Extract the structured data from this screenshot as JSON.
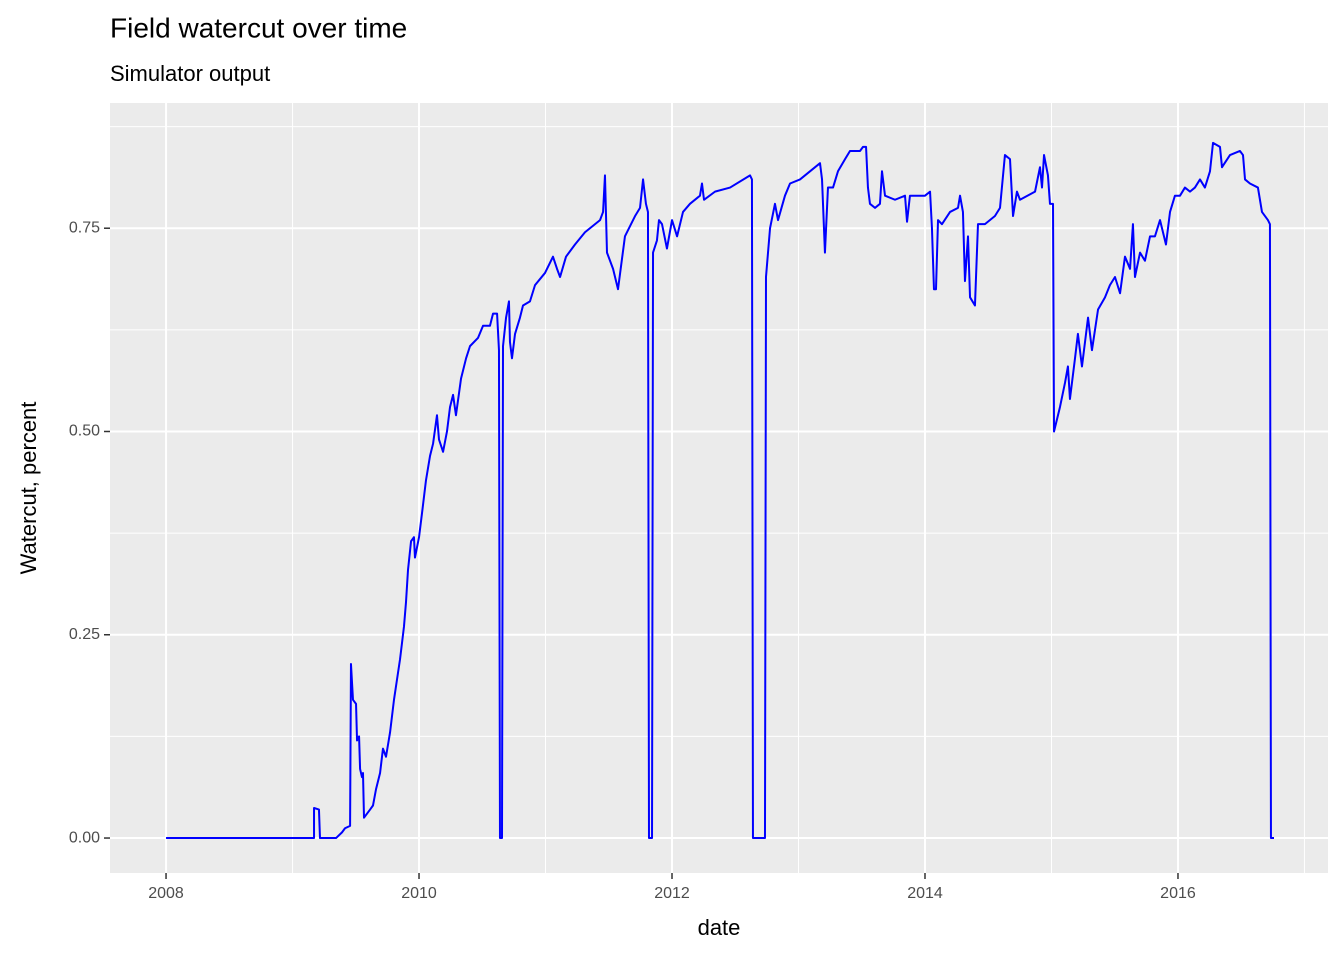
{
  "chart_data": {
    "type": "line",
    "title": "Field watercut over time",
    "subtitle": "Simulator output",
    "x_label": "date",
    "y_label": "Watercut, percent",
    "color": "#0000ff",
    "grid": true,
    "minor_grid": true,
    "xlim": [
      2007.557,
      2017.186
    ],
    "ylim": [
      -0.043,
      0.904
    ],
    "xticks": [
      2008,
      2010,
      2012,
      2014,
      2016
    ],
    "yticks": [
      {
        "value": 0,
        "label": "0.00"
      },
      0.25,
      {
        "value": 0.5,
        "label": "0.50"
      },
      0.75
    ],
    "x": [
      2008.0,
      2009.17,
      2009.17,
      2009.209,
      2009.217,
      2009.344,
      2009.391,
      2009.415,
      2009.455,
      2009.462,
      2009.478,
      2009.502,
      2009.51,
      2009.526,
      2009.534,
      2009.549,
      2009.557,
      2009.565,
      2009.613,
      2009.636,
      2009.66,
      2009.692,
      2009.715,
      2009.739,
      2009.771,
      2009.802,
      2009.826,
      2009.85,
      2009.881,
      2009.897,
      2009.913,
      2009.937,
      2009.96,
      2009.968,
      2010.0,
      2010.024,
      2010.055,
      2010.087,
      2010.111,
      2010.142,
      2010.158,
      2010.19,
      2010.221,
      2010.245,
      2010.269,
      2010.292,
      2010.332,
      2010.372,
      2010.403,
      2010.466,
      2010.506,
      2010.561,
      2010.585,
      2010.617,
      2010.632,
      2010.64,
      2010.656,
      2010.664,
      2010.688,
      2010.711,
      2010.719,
      2010.735,
      2010.759,
      2010.798,
      2010.822,
      2010.877,
      2010.917,
      2010.996,
      2011.059,
      2011.091,
      2011.115,
      2011.162,
      2011.233,
      2011.312,
      2011.431,
      2011.455,
      2011.47,
      2011.486,
      2011.534,
      2011.573,
      2011.628,
      2011.708,
      2011.747,
      2011.771,
      2011.794,
      2011.81,
      2011.818,
      2011.842,
      2011.85,
      2011.881,
      2011.897,
      2011.921,
      2011.96,
      2012.0,
      2012.04,
      2012.087,
      2012.142,
      2012.221,
      2012.237,
      2012.253,
      2012.34,
      2012.459,
      2012.617,
      2012.632,
      2012.64,
      2012.735,
      2012.743,
      2012.775,
      2012.814,
      2012.838,
      2012.893,
      2012.933,
      2013.012,
      2013.091,
      2013.17,
      2013.186,
      2013.209,
      2013.233,
      2013.273,
      2013.312,
      2013.368,
      2013.407,
      2013.486,
      2013.51,
      2013.534,
      2013.549,
      2013.565,
      2013.605,
      2013.644,
      2013.66,
      2013.684,
      2013.763,
      2013.842,
      2013.858,
      2013.881,
      2014.0,
      2014.04,
      2014.055,
      2014.071,
      2014.087,
      2014.103,
      2014.134,
      2014.198,
      2014.261,
      2014.277,
      2014.3,
      2014.316,
      2014.34,
      2014.356,
      2014.395,
      2014.419,
      2014.474,
      2014.553,
      2014.593,
      2014.632,
      2014.672,
      2014.696,
      2014.727,
      2014.751,
      2014.87,
      2014.909,
      2014.925,
      2014.941,
      2014.972,
      2014.988,
      2015.012,
      2015.02,
      2015.067,
      2015.107,
      2015.13,
      2015.146,
      2015.186,
      2015.209,
      2015.241,
      2015.289,
      2015.32,
      2015.368,
      2015.423,
      2015.462,
      2015.502,
      2015.542,
      2015.581,
      2015.621,
      2015.644,
      2015.66,
      2015.7,
      2015.739,
      2015.779,
      2015.818,
      2015.858,
      2015.905,
      2015.937,
      2015.976,
      2016.016,
      2016.055,
      2016.095,
      2016.134,
      2016.174,
      2016.213,
      2016.253,
      2016.277,
      2016.332,
      2016.348,
      2016.411,
      2016.49,
      2016.514,
      2016.53,
      2016.569,
      2016.632,
      2016.664,
      2016.711,
      2016.727,
      2016.735,
      2016.759
    ],
    "values": [
      0,
      0,
      0.037,
      0.035,
      0,
      0,
      0.007,
      0.012,
      0.015,
      0.214,
      0.17,
      0.165,
      0.12,
      0.125,
      0.085,
      0.075,
      0.08,
      0.025,
      0.035,
      0.04,
      0.06,
      0.08,
      0.11,
      0.1,
      0.13,
      0.17,
      0.195,
      0.22,
      0.26,
      0.29,
      0.33,
      0.365,
      0.37,
      0.345,
      0.37,
      0.4,
      0.44,
      0.47,
      0.485,
      0.52,
      0.49,
      0.475,
      0.5,
      0.53,
      0.545,
      0.52,
      0.565,
      0.59,
      0.605,
      0.615,
      0.63,
      0.63,
      0.645,
      0.645,
      0.6,
      0,
      0,
      0.605,
      0.64,
      0.66,
      0.61,
      0.59,
      0.62,
      0.64,
      0.655,
      0.66,
      0.68,
      0.695,
      0.715,
      0.7,
      0.69,
      0.715,
      0.73,
      0.745,
      0.76,
      0.77,
      0.815,
      0.72,
      0.7,
      0.675,
      0.74,
      0.765,
      0.775,
      0.81,
      0.78,
      0.77,
      0,
      0,
      0.72,
      0.735,
      0.76,
      0.755,
      0.725,
      0.76,
      0.74,
      0.77,
      0.78,
      0.79,
      0.805,
      0.785,
      0.795,
      0.8,
      0.815,
      0.81,
      0,
      0,
      0.69,
      0.75,
      0.78,
      0.76,
      0.79,
      0.805,
      0.81,
      0.82,
      0.83,
      0.81,
      0.72,
      0.8,
      0.8,
      0.82,
      0.835,
      0.845,
      0.845,
      0.85,
      0.85,
      0.8,
      0.78,
      0.775,
      0.78,
      0.82,
      0.79,
      0.785,
      0.79,
      0.758,
      0.79,
      0.79,
      0.795,
      0.75,
      0.675,
      0.675,
      0.76,
      0.755,
      0.77,
      0.775,
      0.79,
      0.77,
      0.685,
      0.74,
      0.665,
      0.655,
      0.755,
      0.755,
      0.765,
      0.775,
      0.84,
      0.835,
      0.765,
      0.795,
      0.785,
      0.795,
      0.825,
      0.8,
      0.84,
      0.815,
      0.78,
      0.78,
      0.5,
      0.53,
      0.56,
      0.58,
      0.54,
      0.59,
      0.62,
      0.58,
      0.64,
      0.6,
      0.65,
      0.665,
      0.68,
      0.69,
      0.67,
      0.715,
      0.7,
      0.755,
      0.69,
      0.72,
      0.71,
      0.74,
      0.74,
      0.76,
      0.73,
      0.77,
      0.79,
      0.79,
      0.8,
      0.795,
      0.8,
      0.81,
      0.8,
      0.82,
      0.855,
      0.85,
      0.825,
      0.84,
      0.845,
      0.84,
      0.81,
      0.805,
      0.8,
      0.77,
      0.76,
      0.755,
      0,
      0
    ]
  }
}
